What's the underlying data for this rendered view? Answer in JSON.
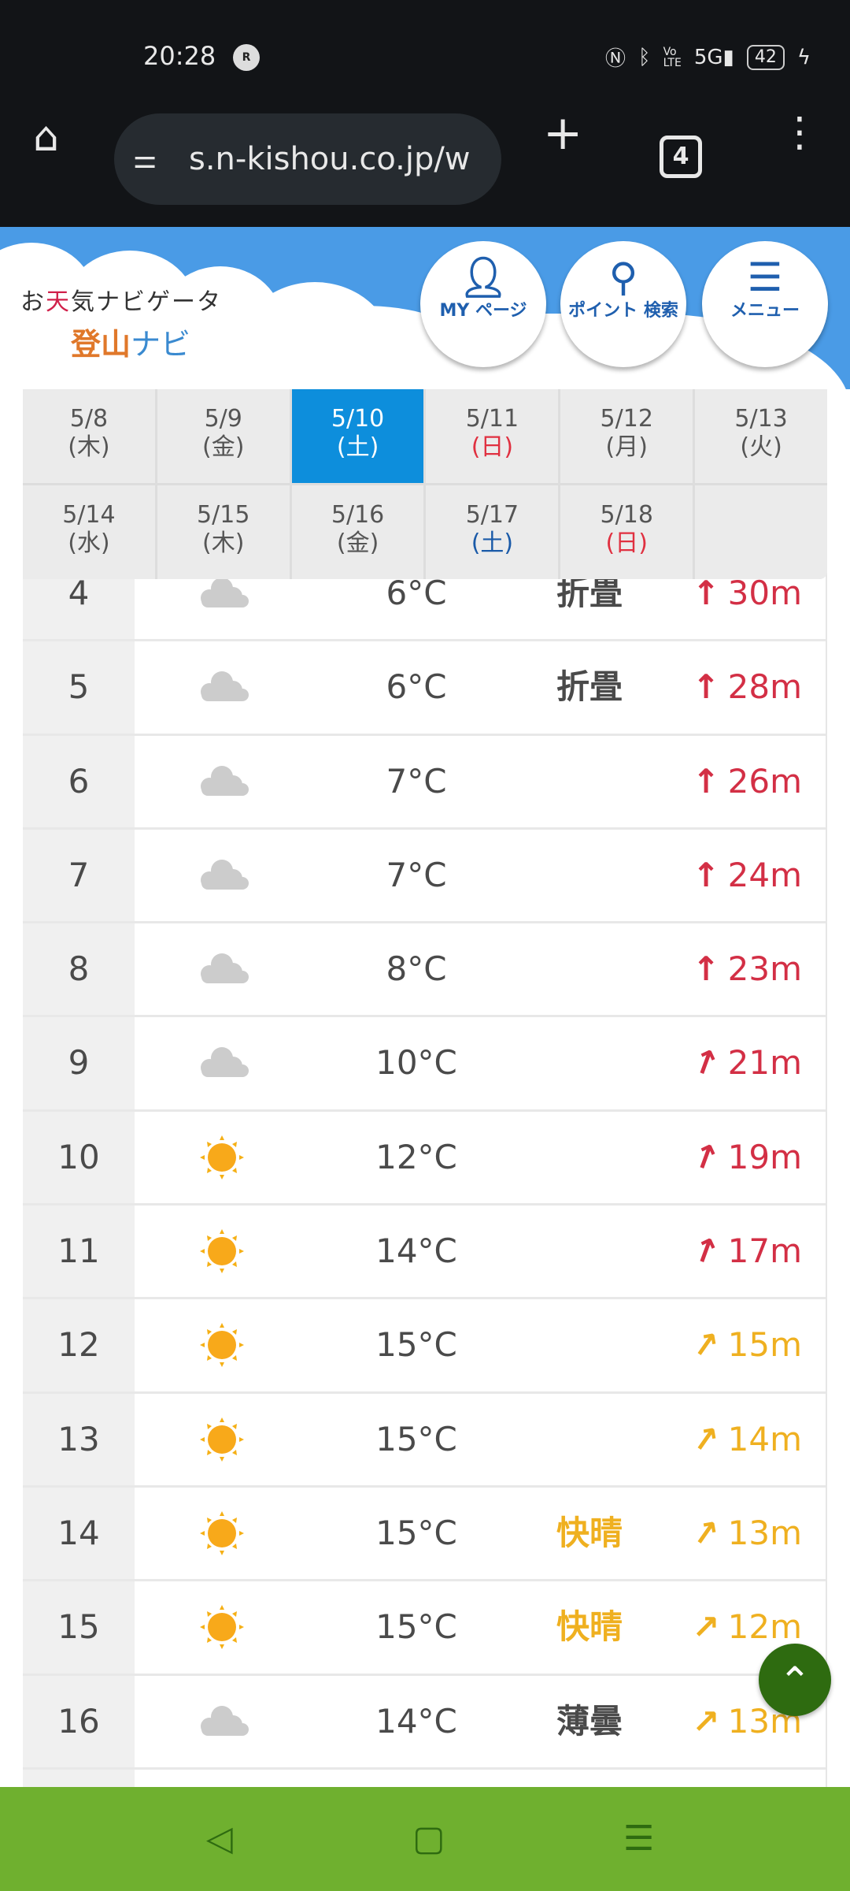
{
  "status": {
    "time": "20:28",
    "rlink": "R",
    "battery": "42",
    "icons": [
      "nfc-icon",
      "bluetooth-icon",
      "volte-icon",
      "5g-signal-icon",
      "charging-icon"
    ]
  },
  "browser": {
    "url": "s.n-kishou.co.jp/w",
    "tab_count": "4"
  },
  "header": {
    "logo_line1_a": "お",
    "logo_line1_b": "天",
    "logo_line1_c": "気ナビゲータ",
    "logo_line2_a": "登山",
    "logo_line2_b": "ナビ",
    "my_page": "MY ページ",
    "point_search": "ポイント 検索",
    "menu": "メニュー"
  },
  "dates": [
    {
      "d": "5/8",
      "w": "(木)"
    },
    {
      "d": "5/9",
      "w": "(金)"
    },
    {
      "d": "5/10",
      "w": "(土)",
      "selected": true
    },
    {
      "d": "5/11",
      "w": "(日)",
      "type": "sun"
    },
    {
      "d": "5/12",
      "w": "(月)"
    },
    {
      "d": "5/13",
      "w": "(火)"
    },
    {
      "d": "5/14",
      "w": "(水)"
    },
    {
      "d": "5/15",
      "w": "(木)"
    },
    {
      "d": "5/16",
      "w": "(金)"
    },
    {
      "d": "5/17",
      "w": "(土)",
      "type": "sat"
    },
    {
      "d": "5/18",
      "w": "(日)",
      "type": "sun"
    },
    {
      "d": "",
      "w": ""
    }
  ],
  "colors": {
    "red": "#d32f45",
    "yellow": "#efb020",
    "selected": "#0d8edc"
  },
  "rows": [
    {
      "hour": "4",
      "icon": "cloud",
      "temp": "6°C",
      "weather": "折畳",
      "wcolor": "gray",
      "wind": "30m",
      "dir": 0,
      "level": "red"
    },
    {
      "hour": "5",
      "icon": "cloud",
      "temp": "6°C",
      "weather": "折畳",
      "wcolor": "gray",
      "wind": "28m",
      "dir": 0,
      "level": "red"
    },
    {
      "hour": "6",
      "icon": "cloud",
      "temp": "7°C",
      "weather": "",
      "wind": "26m",
      "dir": 0,
      "level": "red"
    },
    {
      "hour": "7",
      "icon": "cloud",
      "temp": "7°C",
      "weather": "",
      "wind": "24m",
      "dir": 0,
      "level": "red"
    },
    {
      "hour": "8",
      "icon": "cloud",
      "temp": "8°C",
      "weather": "",
      "wind": "23m",
      "dir": 0,
      "level": "red"
    },
    {
      "hour": "9",
      "icon": "cloud",
      "temp": "10°C",
      "weather": "",
      "wind": "21m",
      "dir": 20,
      "level": "red"
    },
    {
      "hour": "10",
      "icon": "sun",
      "temp": "12°C",
      "weather": "",
      "wind": "19m",
      "dir": 20,
      "level": "red"
    },
    {
      "hour": "11",
      "icon": "sun",
      "temp": "14°C",
      "weather": "",
      "wind": "17m",
      "dir": 20,
      "level": "red"
    },
    {
      "hour": "12",
      "icon": "sun",
      "temp": "15°C",
      "weather": "",
      "wind": "15m",
      "dir": 35,
      "level": "yellow"
    },
    {
      "hour": "13",
      "icon": "sun",
      "temp": "15°C",
      "weather": "",
      "wind": "14m",
      "dir": 35,
      "level": "yellow"
    },
    {
      "hour": "14",
      "icon": "sun",
      "temp": "15°C",
      "weather": "快晴",
      "wcolor": "yellow",
      "wind": "13m",
      "dir": 35,
      "level": "yellow"
    },
    {
      "hour": "15",
      "icon": "sun",
      "temp": "15°C",
      "weather": "快晴",
      "wcolor": "yellow",
      "wind": "12m",
      "dir": 45,
      "level": "yellow"
    },
    {
      "hour": "16",
      "icon": "cloud",
      "temp": "14°C",
      "weather": "薄曇",
      "wcolor": "gray",
      "wind": "13m",
      "dir": 45,
      "level": "yellow"
    },
    {
      "hour": "",
      "icon": "",
      "temp": "",
      "weather": "",
      "wind": "",
      "dir": 0,
      "level": "yellow"
    }
  ]
}
